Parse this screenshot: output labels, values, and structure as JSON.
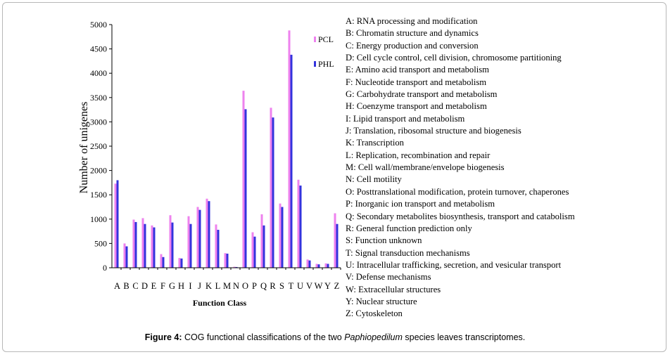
{
  "chart_data": {
    "type": "bar",
    "title": "",
    "xlabel": "Function Class",
    "ylabel": "Number of unigenes",
    "ylim": [
      0,
      5000
    ],
    "yticks": [
      0,
      500,
      1000,
      1500,
      2000,
      2500,
      3000,
      3500,
      4000,
      4500,
      5000
    ],
    "categories": [
      "A",
      "B",
      "C",
      "D",
      "E",
      "F",
      "G",
      "H",
      "I",
      "J",
      "K",
      "L",
      "M",
      "N",
      "O",
      "P",
      "Q",
      "R",
      "S",
      "T",
      "U",
      "V",
      "W",
      "Y",
      "Z"
    ],
    "series": [
      {
        "name": "PCL",
        "color": "#ee82ee",
        "values": [
          1730,
          500,
          990,
          1020,
          870,
          280,
          1080,
          200,
          1060,
          1250,
          1420,
          890,
          300,
          20,
          3640,
          730,
          1100,
          3290,
          1320,
          4880,
          1810,
          170,
          80,
          90,
          1120
        ]
      },
      {
        "name": "PHL",
        "color": "#3333dd",
        "values": [
          1800,
          440,
          940,
          900,
          830,
          220,
          930,
          190,
          900,
          1190,
          1370,
          780,
          290,
          15,
          3260,
          640,
          870,
          3090,
          1250,
          4380,
          1690,
          150,
          70,
          80,
          900
        ]
      }
    ],
    "legend_position": "top-right"
  },
  "class_legend": [
    {
      "code": "A",
      "text": "A: RNA processing and modification"
    },
    {
      "code": "B",
      "text": "B: Chromatin structure and dynamics"
    },
    {
      "code": "C",
      "text": "C: Energy production and conversion"
    },
    {
      "code": "D",
      "text": "D: Cell cycle control, cell division, chromosome partitioning"
    },
    {
      "code": "E",
      "text": "E: Amino acid transport and metabolism"
    },
    {
      "code": "F",
      "text": "F: Nucleotide transport and metabolism"
    },
    {
      "code": "G",
      "text": "G: Carbohydrate transport and metabolism"
    },
    {
      "code": "H",
      "text": "H: Coenzyme transport and metabolism"
    },
    {
      "code": "I",
      "text": "I: Lipid transport and metabolism"
    },
    {
      "code": "J",
      "text": "J: Translation, ribosomal structure and biogenesis"
    },
    {
      "code": "K",
      "text": "K: Transcription"
    },
    {
      "code": "L",
      "text": "L: Replication, recombination and repair"
    },
    {
      "code": "M",
      "text": "M: Cell wall/membrane/envelope biogenesis"
    },
    {
      "code": "N",
      "text": "N: Cell motility"
    },
    {
      "code": "O",
      "text": "O: Posttranslational modification, protein turnover, chaperones"
    },
    {
      "code": "P",
      "text": "P: Inorganic ion transport and metabolism"
    },
    {
      "code": "Q",
      "text": "Q: Secondary metabolites biosynthesis, transport and catabolism"
    },
    {
      "code": "R",
      "text": "R: General function prediction only"
    },
    {
      "code": "S",
      "text": "S: Function unknown"
    },
    {
      "code": "T",
      "text": "T: Signal transduction mechanisms"
    },
    {
      "code": "U",
      "text": "U: Intracellular trafficking, secretion, and vesicular transport"
    },
    {
      "code": "V",
      "text": "V: Defense mechanisms"
    },
    {
      "code": "W",
      "text": "W: Extracellular structures"
    },
    {
      "code": "Y",
      "text": "Y: Nuclear structure"
    },
    {
      "code": "Z",
      "text": "Z: Cytoskeleton"
    }
  ],
  "caption": {
    "label": "Figure 4:",
    "text_before": " COG functional classifications of the two ",
    "species": "Paphiopedilum",
    "text_after": " species leaves transcriptomes."
  }
}
